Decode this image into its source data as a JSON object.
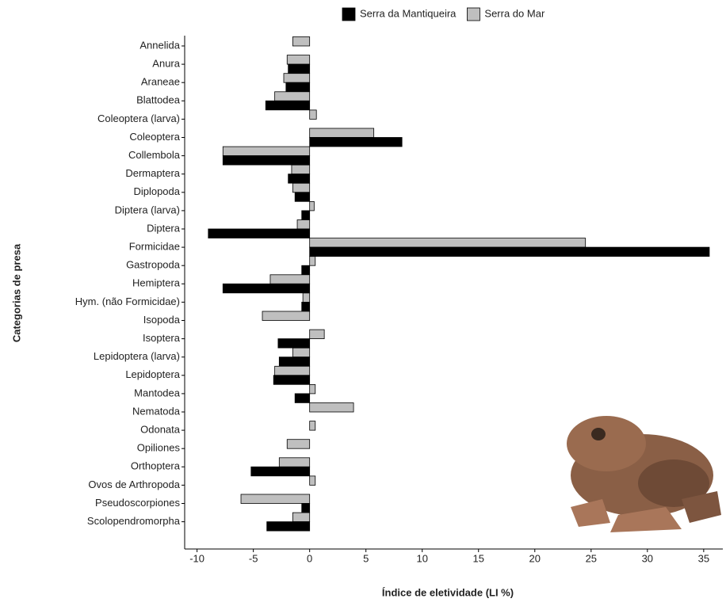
{
  "chart_data": {
    "type": "hbar",
    "x_label": "Índice de eletividade (LI %)",
    "y_label": "Categorias de presa",
    "categories": [
      "Annelida",
      "Anura",
      "Araneae",
      "Blattodea",
      "Coleoptera (larva)",
      "Coleoptera",
      "Collembola",
      "Dermaptera",
      "Diplopoda",
      "Diptera (larva)",
      "Diptera",
      "Formicidae",
      "Gastropoda",
      "Hemiptera",
      "Hym. (não Formicidae)",
      "Isopoda",
      "Isoptera",
      "Lepidoptera (larva)",
      "Lepidoptera",
      "Mantodea",
      "Nematoda",
      "Odonata",
      "Opiliones",
      "Orthoptera",
      "Ovos de Arthropoda",
      "Pseudoscorpiones",
      "Scolopendromorpha"
    ],
    "series": [
      {
        "name": "Serra da Mantiqueira",
        "color": "#000000",
        "values": [
          0,
          -1.9,
          -2.1,
          -3.9,
          0,
          8.2,
          -7.7,
          -1.9,
          -1.3,
          -0.7,
          -9.0,
          35.5,
          -0.7,
          -7.7,
          -0.7,
          0,
          -2.8,
          -2.7,
          -3.2,
          -1.3,
          0,
          0,
          0,
          -5.2,
          0,
          -0.7,
          -3.8
        ]
      },
      {
        "name": "Serra do Mar",
        "color": "#bfbfbf",
        "values": [
          -1.5,
          -2.0,
          -2.3,
          -3.1,
          0.6,
          5.7,
          -7.7,
          -1.6,
          -1.5,
          0.4,
          -1.1,
          24.5,
          0.5,
          -3.5,
          -0.6,
          -4.2,
          1.3,
          -1.5,
          -3.1,
          0.5,
          3.9,
          0.5,
          -2.0,
          -2.7,
          0.5,
          -6.1,
          -1.5
        ]
      }
    ],
    "xlim": [
      -11.1,
      36.7
    ],
    "xticks": [
      -10,
      -5,
      0,
      5,
      10,
      15,
      20,
      25,
      30,
      35
    ],
    "legend": "top"
  }
}
